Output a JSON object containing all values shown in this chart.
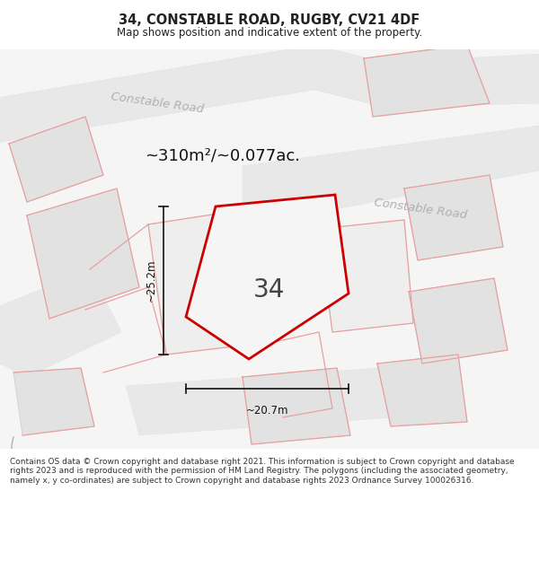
{
  "title": "34, CONSTABLE ROAD, RUGBY, CV21 4DF",
  "subtitle": "Map shows position and indicative extent of the property.",
  "area_label": "~310m²/~0.077ac.",
  "number_label": "34",
  "width_label": "~20.7m",
  "height_label": "~25.2m",
  "footer_text": "Contains OS data © Crown copyright and database right 2021. This information is subject to Crown copyright and database rights 2023 and is reproduced with the permission of HM Land Registry. The polygons (including the associated geometry, namely x, y co-ordinates) are subject to Crown copyright and database rights 2023 Ordnance Survey 100026316.",
  "bg_color": "#f5f5f5",
  "plot_stroke": "#cc0000",
  "plot_fill": "#f5f5f5",
  "building_fill": "#e2e2e2",
  "building_edge": "#cccccc",
  "road_fill": "#e8e8e8",
  "road_label_color": "#b0b0b0",
  "pink_line_color": "#e8a0a0",
  "dim_color": "#111111",
  "text_color": "#333333",
  "title_color": "#222222",
  "footer_color": "#333333"
}
